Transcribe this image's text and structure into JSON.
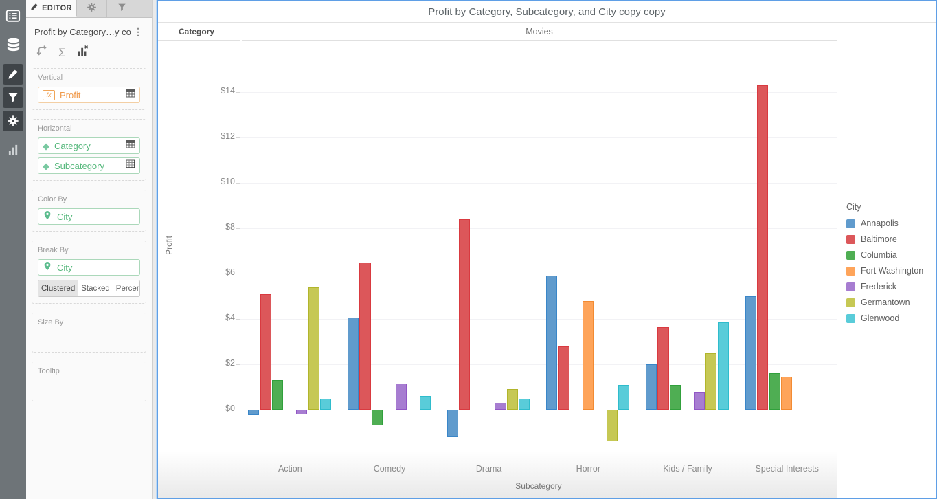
{
  "rail": {
    "items": [
      {
        "icon": "list-icon",
        "active": false
      },
      {
        "icon": "database-icon",
        "active": false
      },
      {
        "icon": "pencil-icon",
        "active": true
      },
      {
        "icon": "funnel-icon",
        "active": true
      },
      {
        "icon": "gear-icon",
        "active": true
      },
      {
        "icon": "bar-chart-icon",
        "active": false
      }
    ]
  },
  "sidebar": {
    "tabs": [
      {
        "label": "EDITOR",
        "icon": "pencil-icon",
        "active": true
      },
      {
        "icon": "gear-icon",
        "active": false
      },
      {
        "icon": "funnel-icon",
        "active": false
      }
    ],
    "title": "Profit by Category…y copy",
    "menu_icon": "kebab-menu",
    "toolbar_icons": [
      "swap-axes-icon",
      "sigma-icon",
      "chart-remove-icon"
    ],
    "sigma_glyph": "Σ",
    "kebab_glyph": "⋮",
    "sections": {
      "vertical": {
        "label": "Vertical",
        "field": {
          "icon": "fx-icon",
          "fx_text": "fx",
          "name": "Profit"
        }
      },
      "horizontal": {
        "label": "Horizontal",
        "fields": [
          {
            "icon": "diamond-icon",
            "glyph": "◆",
            "name": "Category"
          },
          {
            "icon": "diamond-icon",
            "glyph": "◆",
            "name": "Subcategory"
          }
        ]
      },
      "color_by": {
        "label": "Color By",
        "field": {
          "icon": "pin-icon",
          "name": "City"
        }
      },
      "break_by": {
        "label": "Break By",
        "field": {
          "icon": "pin-icon",
          "name": "City"
        },
        "modes": [
          "Clustered",
          "Stacked",
          "Percent"
        ],
        "selected_mode": "Clustered"
      },
      "size_by": {
        "label": "Size By"
      },
      "tooltip": {
        "label": "Tooltip"
      }
    }
  },
  "chart": {
    "title": "Profit by Category, Subcategory, and City copy copy",
    "header": {
      "left": "Category",
      "center": "Movies"
    },
    "selection_border_color": "#5f9fe6"
  },
  "chart_data": {
    "type": "bar",
    "title": "Profit by Category, Subcategory, and City copy copy",
    "category_group": "Movies",
    "xlabel": "Subcategory",
    "ylabel": "Profit",
    "legend_title": "City",
    "legend_position": "right",
    "grid": true,
    "ylim": [
      -2.1,
      16.3
    ],
    "yticks": [
      0,
      2,
      4,
      6,
      8,
      10,
      12,
      14
    ],
    "ytick_labels": [
      "$0",
      "$2",
      "$4",
      "$6",
      "$8",
      "$10",
      "$12",
      "$14"
    ],
    "categories": [
      "Action",
      "Comedy",
      "Drama",
      "Horror",
      "Kids / Family",
      "Special Interests"
    ],
    "series": [
      {
        "name": "Annapolis",
        "color": "#609bcd",
        "stroke": "#3a86c8",
        "values": [
          -0.25,
          4.05,
          -1.2,
          5.9,
          2.0,
          5.0
        ]
      },
      {
        "name": "Baltimore",
        "color": "#dc575a",
        "stroke": "#d93a40",
        "values": [
          5.1,
          6.5,
          8.4,
          2.8,
          3.65,
          14.3
        ]
      },
      {
        "name": "Columbia",
        "color": "#4fae53",
        "stroke": "#31a03c",
        "values": [
          1.3,
          -0.7,
          null,
          null,
          1.1,
          1.6
        ]
      },
      {
        "name": "Fort Washington",
        "color": "#fea45a",
        "stroke": "#f28b33",
        "values": [
          null,
          null,
          null,
          4.8,
          null,
          1.45
        ]
      },
      {
        "name": "Frederick",
        "color": "#a77dd1",
        "stroke": "#9257c5",
        "values": [
          -0.2,
          1.15,
          0.3,
          null,
          0.75,
          null
        ]
      },
      {
        "name": "Germantown",
        "color": "#c6c854",
        "stroke": "#b1b52c",
        "values": [
          5.4,
          null,
          0.9,
          -1.4,
          2.5,
          null
        ]
      },
      {
        "name": "Glenwood",
        "color": "#59ccd9",
        "stroke": "#2fbccc",
        "values": [
          0.5,
          0.6,
          0.5,
          1.1,
          3.85,
          null
        ]
      }
    ]
  }
}
